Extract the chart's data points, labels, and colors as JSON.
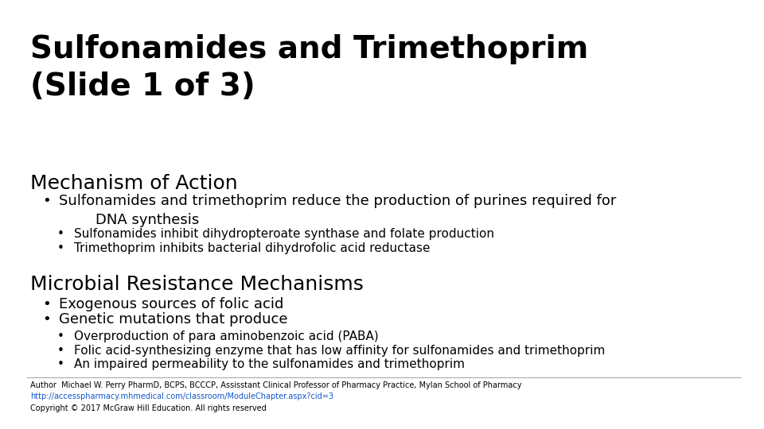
{
  "title": "Sulfonamides and Trimethoprim\n(Slide 1 of 3)",
  "background_color": "#ffffff",
  "text_color": "#000000",
  "section1_heading": "Mechanism of Action",
  "section1_bullet1": "Sulfonamides and trimethoprim reduce the production of purines required for\n        DNA synthesis",
  "section1_sub1": "Sulfonamides inhibit dihydropteroate synthase and folate production",
  "section1_sub2": "Trimethoprim inhibits bacterial dihydrofolic acid reductase",
  "section2_heading": "Microbial Resistance Mechanisms",
  "section2_bullet1": "Exogenous sources of folic acid",
  "section2_bullet2": "Genetic mutations that produce",
  "section2_sub1": "Overproduction of para aminobenzoic acid (PABA)",
  "section2_sub2": "Folic acid-synthesizing enzyme that has low affinity for sulfonamides and trimethoprim",
  "section2_sub3": "An impaired permeability to the sulfonamides and trimethoprim",
  "footer_line1": "Author  Michael W. Perry PharmD, BCPS, BCCCP, Assisstant Clinical Professor of Pharmacy Practice, Mylan School of Pharmacy",
  "footer_line2": "http://accesspharmacy.mhmedical.com/classroom/ModuleChapter.aspx?cid=3",
  "footer_line3": "Copyright © 2017 McGraw Hill Education. All rights reserved",
  "title_fontsize": 28,
  "heading_fontsize": 18,
  "bullet_fontsize": 13,
  "sub_fontsize": 11,
  "footer_fontsize": 7,
  "link_color": "#1155cc"
}
